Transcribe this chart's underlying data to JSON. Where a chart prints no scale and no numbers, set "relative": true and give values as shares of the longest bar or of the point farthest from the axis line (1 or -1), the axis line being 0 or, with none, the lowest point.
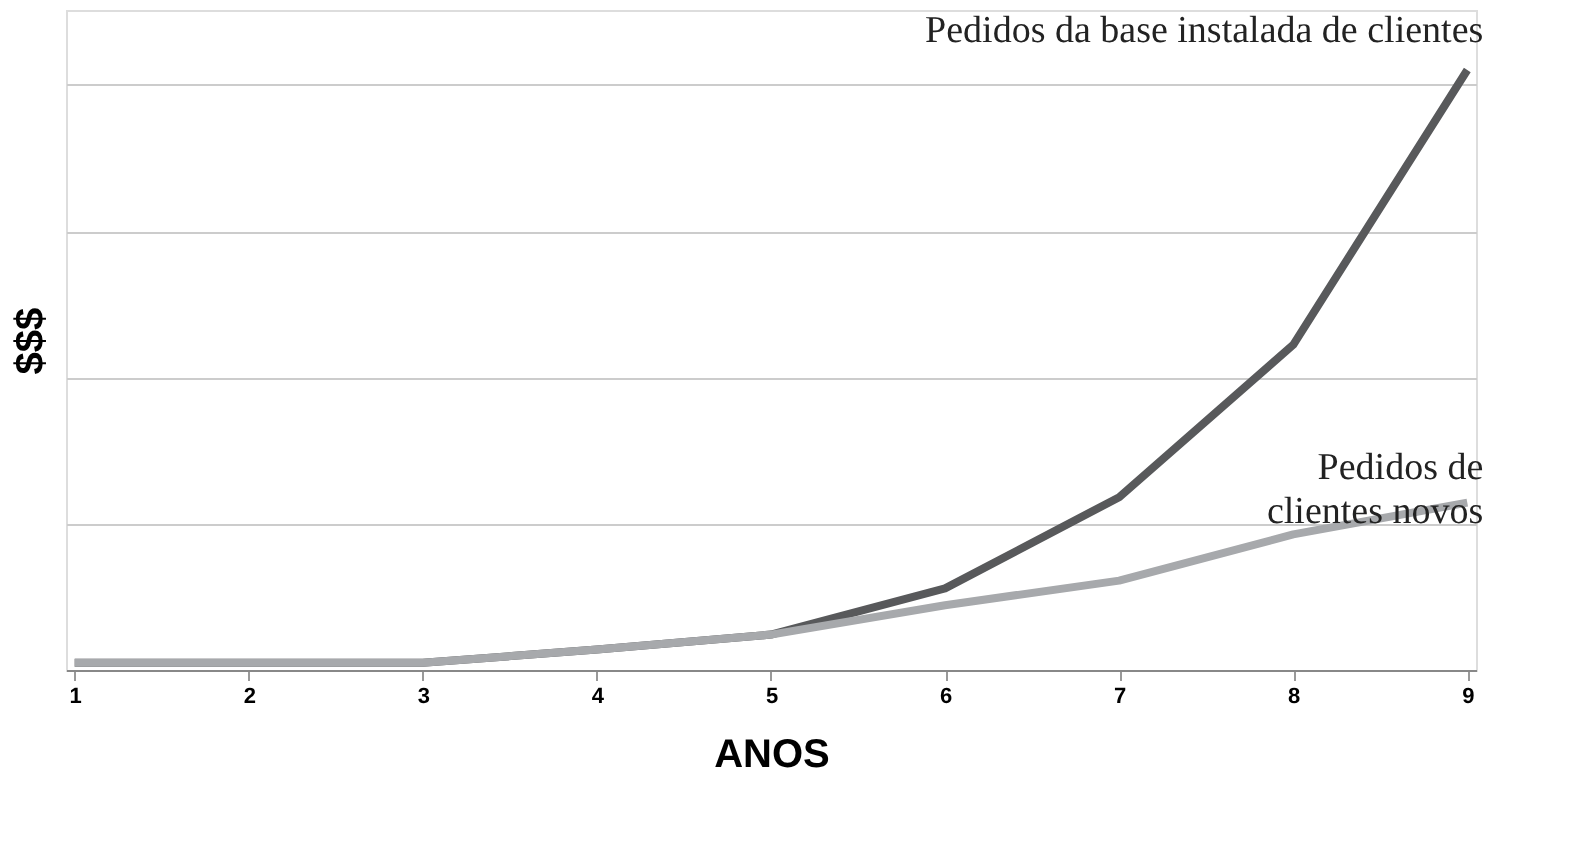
{
  "chart_data": {
    "type": "line",
    "relative": true,
    "xlabel": "ANOS",
    "ylabel": "$$$",
    "categories": [
      "1",
      "2",
      "3",
      "4",
      "5",
      "6",
      "7",
      "8",
      "9"
    ],
    "series": [
      {
        "name": "Pedidos da base instalada de clientes",
        "color": "#58595b",
        "values": [
          0.012,
          0.012,
          0.012,
          0.034,
          0.059,
          0.136,
          0.288,
          0.542,
          1
        ]
      },
      {
        "name": "Pedidos de\nclientes novos",
        "color": "#a7a9ac",
        "values": [
          0.012,
          0.012,
          0.012,
          0.034,
          0.059,
          0.108,
          0.149,
          0.226,
          0.279
        ]
      }
    ],
    "grid": "y",
    "legend": false,
    "marker": "none",
    "line_style": "solid"
  }
}
